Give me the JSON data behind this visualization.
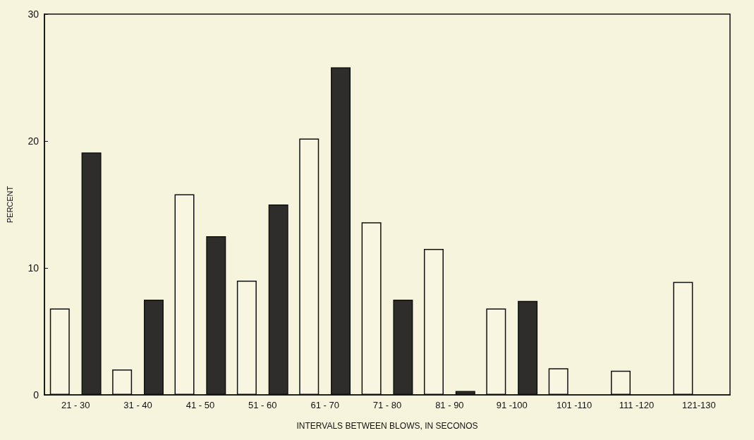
{
  "chart_data": {
    "type": "bar",
    "xlabel": "INTERVALS BETWEEN BLOWS, IN SECONOS",
    "ylabel": "PERCENT",
    "categories": [
      "21 - 30",
      "31 - 40",
      "41 - 50",
      "51 - 60",
      "61 - 70",
      "71 - 80",
      "81 - 90",
      "91 -100",
      "101 -110",
      "111 -120",
      "121-130"
    ],
    "series": [
      {
        "color": "#f8f5e1",
        "values": [
          6.8,
          2,
          15.8,
          9,
          20.2,
          13.6,
          11.5,
          6.8,
          2.1,
          1.9,
          8.9
        ]
      },
      {
        "color": "#2e2d2b",
        "values": [
          19.1,
          7.5,
          12.5,
          15,
          25.8,
          7.5,
          0.3,
          7.4,
          null,
          null,
          null
        ]
      }
    ],
    "ylim": [
      0,
      30
    ],
    "yticks": [
      0,
      10,
      20,
      30
    ],
    "grid": false
  }
}
